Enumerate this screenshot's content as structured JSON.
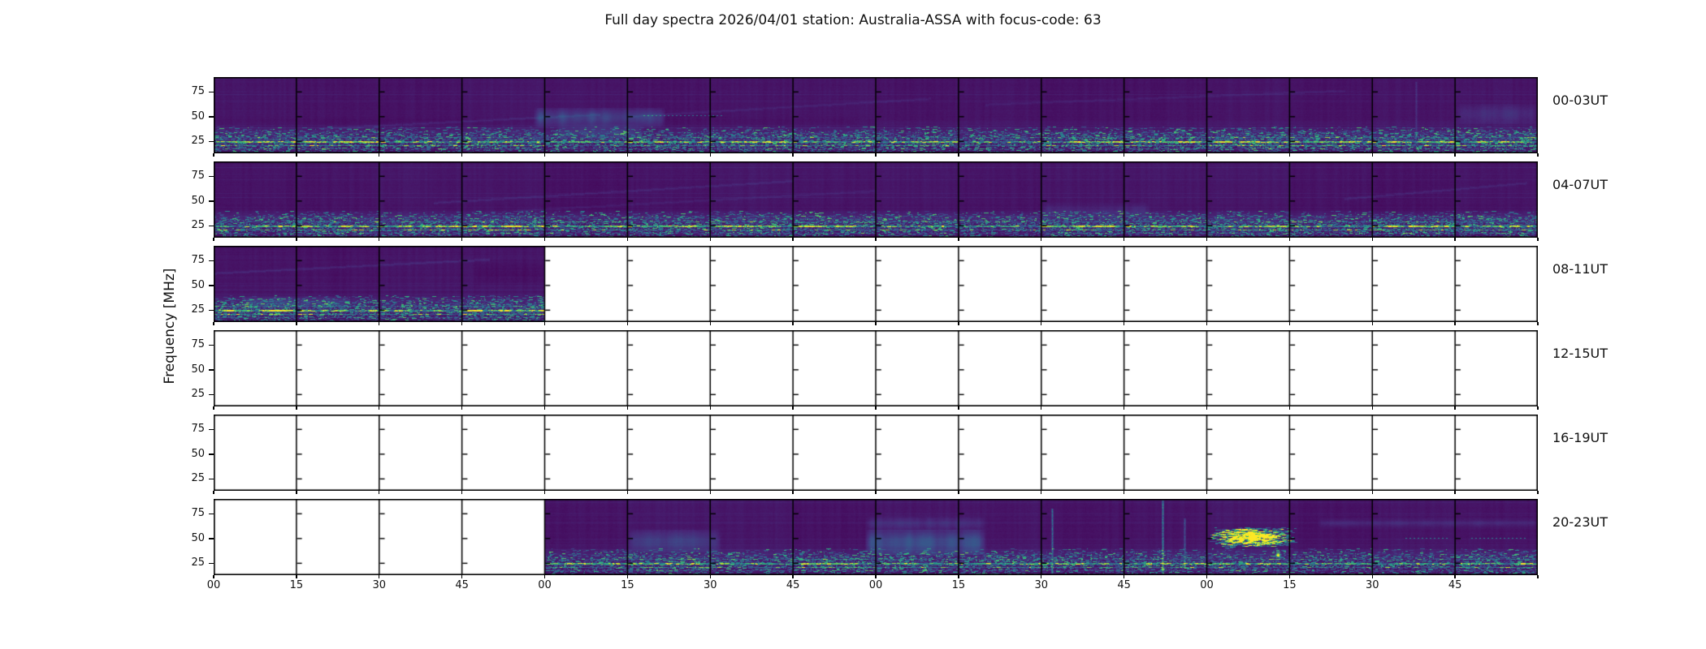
{
  "figure": {
    "title": "Full day spectra 2026/04/01 station: Australia-ASSA with focus-code: 63",
    "y_axis_label": "Frequency [MHz]"
  },
  "chart_data": {
    "type": "heatmap",
    "subtype": "radio-spectrogram-daily-overview",
    "title": "Full day spectra 2026/04/01 station: Australia-ASSA with focus-code: 63",
    "date": "2026/04/01",
    "station": "Australia-ASSA",
    "focus_code": "63",
    "colormap": "viridis",
    "n_rows": 6,
    "row_duration_hours": 4,
    "segment_minutes": 15,
    "segments_per_row": 16,
    "freq_axis": {
      "label": "Frequency [MHz]",
      "tick_labels": [
        "75",
        "50",
        "25"
      ],
      "tick_values_mhz": [
        75,
        50,
        25
      ],
      "range_mhz": [
        13,
        90
      ]
    },
    "time_axis": {
      "tick_labels": [
        "00",
        "15",
        "30",
        "45",
        "00",
        "15",
        "30",
        "45",
        "00",
        "15",
        "30",
        "45",
        "00",
        "15",
        "30",
        "45"
      ],
      "minutes_per_tick": 15
    },
    "palette": {
      "figure_background": "#ffffff",
      "spectrogram_background": "#46117d",
      "rfi_band_teal": "#21918c",
      "bright_rfi_line_green": "#a5db36",
      "burst_peak_yellow": "#fde725",
      "axes": "#000000"
    },
    "rows": [
      {
        "label": "00-03UT",
        "segments_with_data": [
          0,
          1,
          2,
          3,
          4,
          5,
          6,
          7,
          8,
          9,
          10,
          11,
          12,
          13,
          14,
          15
        ],
        "rfi_band_strength": 1.0,
        "features": [
          {
            "kind": "diagonal_streak",
            "t0": 20,
            "f0": 38,
            "t1": 70,
            "f1": 52,
            "i": 0.07
          },
          {
            "kind": "diagonal_streak",
            "t0": 75,
            "f0": 50,
            "t1": 130,
            "f1": 68,
            "i": 0.06
          },
          {
            "kind": "diagonal_streak",
            "t0": 140,
            "f0": 62,
            "t1": 205,
            "f1": 76,
            "i": 0.05
          },
          {
            "kind": "smear",
            "t0": 58,
            "t1": 82,
            "f0": 42,
            "f1": 56,
            "i": 0.2
          },
          {
            "kind": "smear",
            "t0": 62,
            "t1": 78,
            "f0": 30,
            "f1": 40,
            "i": 0.1
          },
          {
            "kind": "dotted_line",
            "t0": 78,
            "t1": 92,
            "f": 51,
            "i": 0.35
          },
          {
            "kind": "dark_band",
            "t0": 0,
            "t1": 120,
            "f0": 41,
            "f1": 47,
            "i": 0.025
          },
          {
            "kind": "smear",
            "t0": 225,
            "t1": 240,
            "f0": 45,
            "f1": 60,
            "i": 0.1
          },
          {
            "kind": "vertical_streak",
            "t": 218,
            "f0": 30,
            "f1": 85,
            "i": 0.12
          }
        ]
      },
      {
        "label": "04-07UT",
        "segments_with_data": [
          0,
          1,
          2,
          3,
          4,
          5,
          6,
          7,
          8,
          9,
          10,
          11,
          12,
          13,
          14,
          15
        ],
        "rfi_band_strength": 1.1,
        "features": [
          {
            "kind": "diagonal_streak",
            "t0": 40,
            "f0": 48,
            "t1": 105,
            "f1": 70,
            "i": 0.07
          },
          {
            "kind": "diagonal_streak",
            "t0": 55,
            "f0": 40,
            "t1": 120,
            "f1": 60,
            "i": 0.05
          },
          {
            "kind": "smear",
            "t0": 150,
            "t1": 170,
            "f0": 35,
            "f1": 45,
            "i": 0.08
          },
          {
            "kind": "diagonal_streak",
            "t0": 205,
            "f0": 52,
            "t1": 238,
            "f1": 68,
            "i": 0.07
          },
          {
            "kind": "dark_band",
            "t0": 0,
            "t1": 240,
            "f0": 40,
            "f1": 46,
            "i": 0.02
          }
        ]
      },
      {
        "label": "08-11UT",
        "segments_with_data": [
          0,
          1,
          2,
          3
        ],
        "rfi_band_strength": 1.2,
        "features": [
          {
            "kind": "diagonal_streak",
            "t0": 0,
            "f0": 62,
            "t1": 50,
            "f1": 76,
            "i": 0.08
          },
          {
            "kind": "smear",
            "t0": 5,
            "t1": 25,
            "f0": 28,
            "f1": 36,
            "i": 0.12
          },
          {
            "kind": "dark_band",
            "t0": 47,
            "t1": 60,
            "f0": 52,
            "f1": 72,
            "i": 0.03
          }
        ]
      },
      {
        "label": "12-15UT",
        "segments_with_data": [],
        "rfi_band_strength": 0,
        "features": []
      },
      {
        "label": "16-19UT",
        "segments_with_data": [],
        "rfi_band_strength": 0,
        "features": []
      },
      {
        "label": "20-23UT",
        "segments_with_data": [
          4,
          5,
          6,
          7,
          8,
          9,
          10,
          11,
          12,
          13,
          14,
          15
        ],
        "rfi_band_strength": 1.0,
        "features": [
          {
            "kind": "smear",
            "t0": 75,
            "t1": 92,
            "f0": 38,
            "f1": 56,
            "i": 0.16
          },
          {
            "kind": "smear",
            "t0": 118,
            "t1": 140,
            "f0": 36,
            "f1": 56,
            "i": 0.24
          },
          {
            "kind": "smear",
            "t0": 118,
            "t1": 140,
            "f0": 60,
            "f1": 70,
            "i": 0.1
          },
          {
            "kind": "vertical_streak",
            "t": 152,
            "f0": 14,
            "f1": 80,
            "i": 0.45
          },
          {
            "kind": "vertical_streak",
            "t": 172,
            "f0": 14,
            "f1": 88,
            "i": 0.55
          },
          {
            "kind": "vertical_streak",
            "t": 176,
            "f0": 20,
            "f1": 70,
            "i": 0.3
          },
          {
            "kind": "burst_cloud",
            "t0": 180,
            "t1": 196,
            "f0": 40,
            "f1": 62,
            "i": 0.45
          },
          {
            "kind": "bright_blob",
            "t": 193,
            "f": 33,
            "i": 1.0
          },
          {
            "kind": "dotted_line",
            "t0": 216,
            "t1": 224,
            "f": 50,
            "i": 0.4
          },
          {
            "kind": "dotted_line",
            "t0": 228,
            "t1": 238,
            "f": 50,
            "i": 0.4
          },
          {
            "kind": "smear",
            "t0": 200,
            "t1": 240,
            "f0": 62,
            "f1": 68,
            "i": 0.08
          }
        ]
      }
    ]
  }
}
